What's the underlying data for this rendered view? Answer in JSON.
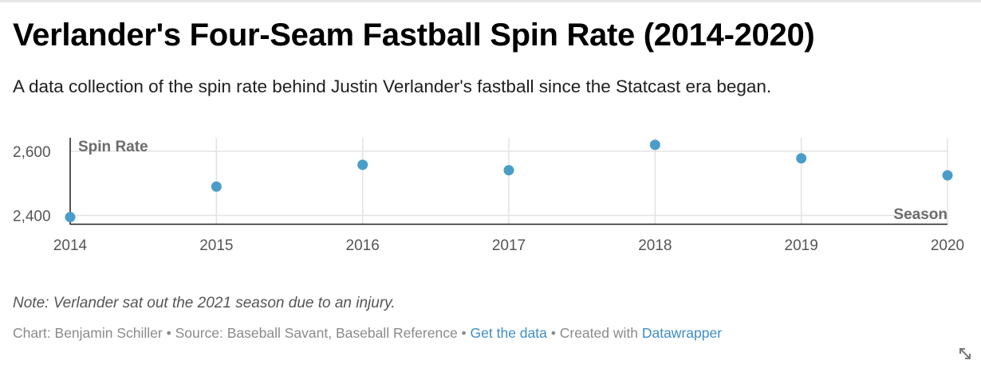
{
  "header": {
    "title": "Verlander's Four-Seam Fastball Spin Rate (2014-2020)",
    "subtitle": "A data collection of the spin rate behind Justin Verlander's fastball since the Statcast era began."
  },
  "chart_data": {
    "type": "scatter",
    "title": "Verlander's Four-Seam Fastball Spin Rate (2014-2020)",
    "ylabel": "Spin Rate",
    "xlabel": "Season",
    "x": [
      2014,
      2015,
      2016,
      2017,
      2018,
      2019,
      2020
    ],
    "x_tick_labels": [
      "2014",
      "2015",
      "2016",
      "2017",
      "2018",
      "2019",
      "2020"
    ],
    "y_ticks": [
      2400,
      2600
    ],
    "y_tick_labels": [
      "2,400",
      "2,600"
    ],
    "ylim": [
      2374,
      2642
    ],
    "xlim": [
      2014,
      2020
    ],
    "series": [
      {
        "values": [
          2395,
          2490,
          2558,
          2541,
          2620,
          2578,
          2525
        ]
      }
    ],
    "grid": true,
    "point_color": "#4a9dc9"
  },
  "notes": "Note: Verlander sat out the 2021 season due to an injury.",
  "footer": {
    "byline": "Chart: Benjamin Schiller",
    "sep1": " • ",
    "source": "Source: Baseball Savant, Baseball Reference",
    "sep2": " • ",
    "get_data": "Get the data",
    "sep3": " • ",
    "created_with": "Created with ",
    "datawrapper": "Datawrapper"
  },
  "colors": {
    "accent": "#4a9dc9",
    "link": "#3d8ec6",
    "gridline": "#e2e2e2"
  },
  "icons": {
    "resize": "resize-diagonal-icon"
  }
}
